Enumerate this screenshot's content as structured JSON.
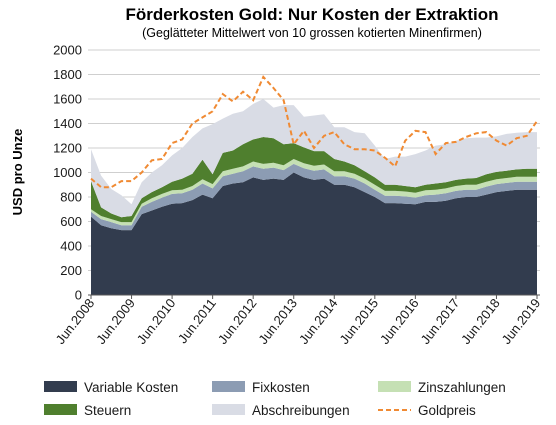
{
  "chart_data": {
    "type": "area",
    "title": "Förderkosten Gold: Nur Kosten der Extraktion",
    "subtitle": "(Geglätteter Mittelwert von 10 grossen kotierten Minenfirmen)",
    "ylabel": "USD pro Unze",
    "xlabel": "",
    "ylim": [
      0,
      2000
    ],
    "yticks": [
      "0",
      "200",
      "400",
      "600",
      "800",
      "1000",
      "1200",
      "1400",
      "1600",
      "1800",
      "2000"
    ],
    "xticks": [
      "Jun.2008",
      "Jun.2009",
      "Jun.2010",
      "Jun.2011",
      "Jun.2012",
      "Jun.2013",
      "Jun.2014",
      "Jun.2015",
      "Jun.2016",
      "Jun.2017",
      "Jun.2018",
      "Jun.2019"
    ],
    "grid": "horizontal",
    "legend_position": "bottom",
    "x": [
      "2008-06",
      "2008-09",
      "2008-12",
      "2009-03",
      "2009-06",
      "2009-09",
      "2009-12",
      "2010-03",
      "2010-06",
      "2010-09",
      "2010-12",
      "2011-03",
      "2011-06",
      "2011-09",
      "2011-12",
      "2012-03",
      "2012-06",
      "2012-09",
      "2012-12",
      "2013-03",
      "2013-06",
      "2013-09",
      "2013-12",
      "2014-03",
      "2014-06",
      "2014-09",
      "2014-12",
      "2015-03",
      "2015-06",
      "2015-09",
      "2015-12",
      "2016-03",
      "2016-06",
      "2016-09",
      "2016-12",
      "2017-03",
      "2017-06",
      "2017-09",
      "2017-12",
      "2018-03",
      "2018-06",
      "2018-09",
      "2018-12",
      "2019-03",
      "2019-06"
    ],
    "series": [
      {
        "name": "Variable Kosten",
        "kind": "area",
        "color": "#323c4e",
        "values": [
          640,
          570,
          545,
          530,
          530,
          660,
          690,
          720,
          745,
          750,
          775,
          820,
          790,
          890,
          910,
          920,
          960,
          940,
          950,
          940,
          1000,
          960,
          940,
          950,
          900,
          900,
          880,
          840,
          800,
          750,
          750,
          745,
          740,
          760,
          760,
          770,
          790,
          800,
          800,
          820,
          840,
          850,
          860,
          860,
          860
        ]
      },
      {
        "name": "Fixkosten",
        "kind": "area",
        "color": "#8c9cb3",
        "values": [
          40,
          50,
          50,
          40,
          40,
          60,
          70,
          75,
          80,
          80,
          85,
          90,
          80,
          80,
          80,
          90,
          90,
          90,
          90,
          80,
          70,
          75,
          75,
          75,
          70,
          70,
          70,
          70,
          60,
          60,
          60,
          60,
          55,
          55,
          60,
          60,
          60,
          60,
          60,
          65,
          65,
          65,
          65,
          65,
          65
        ]
      },
      {
        "name": "Zinszahlungen",
        "kind": "area",
        "color": "#c5e0b4",
        "values": [
          20,
          25,
          25,
          25,
          25,
          25,
          30,
          30,
          30,
          30,
          30,
          35,
          35,
          40,
          40,
          40,
          40,
          40,
          40,
          40,
          40,
          40,
          40,
          40,
          40,
          40,
          40,
          40,
          40,
          40,
          40,
          40,
          40,
          40,
          40,
          40,
          40,
          40,
          40,
          40,
          40,
          40,
          40,
          40,
          40
        ]
      },
      {
        "name": "Steuern",
        "kind": "area",
        "color": "#4f7f2e",
        "values": [
          230,
          70,
          45,
          40,
          50,
          45,
          50,
          55,
          70,
          90,
          100,
          160,
          80,
          150,
          150,
          180,
          180,
          220,
          200,
          170,
          130,
          130,
          120,
          110,
          100,
          80,
          70,
          60,
          60,
          50,
          50,
          45,
          45,
          45,
          50,
          50,
          50,
          50,
          55,
          60,
          60,
          60,
          60,
          65,
          65
        ]
      },
      {
        "name": "Abschreibungen",
        "kind": "area",
        "color": "#d9dce5",
        "values": [
          260,
          260,
          200,
          180,
          95,
          130,
          160,
          180,
          215,
          250,
          300,
          255,
          410,
          280,
          300,
          270,
          290,
          310,
          250,
          320,
          310,
          250,
          290,
          300,
          260,
          280,
          270,
          310,
          260,
          210,
          230,
          240,
          270,
          280,
          310,
          310,
          320,
          330,
          330,
          300,
          290,
          300,
          300,
          300,
          300
        ]
      },
      {
        "name": "Goldpreis",
        "kind": "line",
        "color": "#f08a33",
        "values": [
          950,
          880,
          880,
          930,
          930,
          1000,
          1100,
          1110,
          1240,
          1270,
          1400,
          1450,
          1500,
          1640,
          1580,
          1660,
          1590,
          1780,
          1690,
          1590,
          1230,
          1340,
          1200,
          1300,
          1330,
          1230,
          1190,
          1190,
          1180,
          1120,
          1050,
          1260,
          1340,
          1330,
          1150,
          1240,
          1250,
          1290,
          1320,
          1330,
          1260,
          1220,
          1280,
          1300,
          1420
        ]
      }
    ]
  }
}
